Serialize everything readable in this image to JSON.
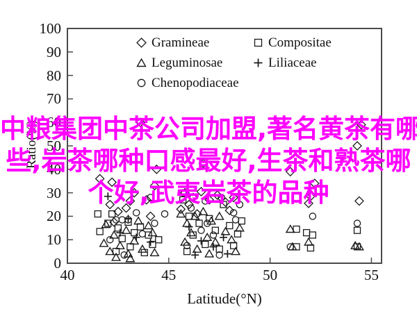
{
  "overlay": {
    "color": "#ff00ff",
    "lines": [
      "中粮集团中茶公司加盟,著名黄茶有哪",
      "些,岩茶哪种口感最好,生茶和熟茶哪",
      "个好,武夷岩茶的品种"
    ]
  },
  "chart_data": {
    "type": "scatter",
    "title": "",
    "xlabel": "Latitude(°N)",
    "ylabel": "Ratio(%)",
    "xlim": [
      40,
      55.5
    ],
    "ylim": [
      0,
      100
    ],
    "x_ticks": [
      40,
      45,
      50,
      55
    ],
    "y_ticks": [
      0,
      10,
      20,
      30,
      40,
      50,
      60,
      70,
      80,
      90,
      100
    ],
    "grid": false,
    "legend_position": "top-inside, two columns",
    "axis_color": "#4a4a4a",
    "marker_color": "#1a1a1a",
    "series": [
      {
        "name": "Gramineae",
        "symbol": "diamond",
        "points": [
          [
            43.6,
            60
          ],
          [
            44.4,
            40
          ],
          [
            41.6,
            36
          ],
          [
            42.2,
            34.5
          ],
          [
            42.1,
            25
          ],
          [
            43.1,
            26.5
          ],
          [
            42.9,
            23.5
          ],
          [
            43.9,
            27
          ],
          [
            42.5,
            22
          ],
          [
            43.3,
            30
          ],
          [
            44.3,
            33
          ],
          [
            42.3,
            17.5
          ],
          [
            44.1,
            20
          ],
          [
            46.7,
            42.5
          ],
          [
            45.8,
            30
          ],
          [
            46.2,
            28
          ],
          [
            46.6,
            30.5
          ],
          [
            47.0,
            27
          ],
          [
            47.4,
            29
          ],
          [
            46.0,
            25
          ],
          [
            47.8,
            26
          ],
          [
            45.6,
            23
          ],
          [
            48.2,
            28
          ],
          [
            46.4,
            21
          ],
          [
            48.0,
            22.5
          ],
          [
            51.0,
            39
          ],
          [
            52.2,
            34
          ],
          [
            52.0,
            28.5
          ],
          [
            51.9,
            25.5
          ],
          [
            54.5,
            59
          ],
          [
            54.3,
            50
          ],
          [
            54.4,
            26.5
          ]
        ]
      },
      {
        "name": "Compositae",
        "symbol": "square",
        "points": [
          [
            41.5,
            21
          ],
          [
            42.2,
            21
          ],
          [
            41.6,
            13.5
          ],
          [
            42.0,
            17
          ],
          [
            42.5,
            15
          ],
          [
            43.0,
            17.5
          ],
          [
            43.3,
            13
          ],
          [
            42.7,
            10.5
          ],
          [
            43.6,
            15.5
          ],
          [
            44.0,
            12
          ],
          [
            43.1,
            7
          ],
          [
            44.2,
            8
          ],
          [
            42.4,
            5
          ],
          [
            43.8,
            4.5
          ],
          [
            44.5,
            10
          ],
          [
            45.7,
            27
          ],
          [
            47.7,
            25
          ],
          [
            46.0,
            20
          ],
          [
            46.5,
            17
          ],
          [
            47.0,
            19
          ],
          [
            47.3,
            14
          ],
          [
            46.2,
            12
          ],
          [
            48.0,
            16
          ],
          [
            48.4,
            12.5
          ],
          [
            46.8,
            8
          ],
          [
            47.5,
            6
          ],
          [
            48.2,
            7.5
          ],
          [
            45.9,
            5
          ],
          [
            48.6,
            18
          ],
          [
            51.3,
            14.5
          ],
          [
            51.8,
            13
          ],
          [
            52.1,
            12
          ],
          [
            51.3,
            7
          ],
          [
            52.0,
            6.5
          ],
          [
            54.3,
            14
          ],
          [
            54.3,
            7
          ]
        ]
      },
      {
        "name": "Leguminosae",
        "symbol": "triangle",
        "points": [
          [
            41.9,
            16.5
          ],
          [
            42.3,
            12
          ],
          [
            41.8,
            8.5
          ],
          [
            42.1,
            5
          ],
          [
            42.6,
            7.5
          ],
          [
            43.0,
            4
          ],
          [
            43.3,
            9.5
          ],
          [
            43.7,
            6
          ],
          [
            44.0,
            16
          ],
          [
            44.2,
            13
          ],
          [
            42.9,
            14
          ],
          [
            43.5,
            18
          ],
          [
            44.3,
            4.5
          ],
          [
            42.4,
            2.5
          ],
          [
            43.1,
            2
          ],
          [
            45.6,
            21
          ],
          [
            45.9,
            17
          ],
          [
            46.3,
            20
          ],
          [
            46.7,
            22
          ],
          [
            47.1,
            18
          ],
          [
            47.5,
            20
          ],
          [
            46.1,
            13
          ],
          [
            46.9,
            11
          ],
          [
            47.3,
            9
          ],
          [
            47.8,
            13.5
          ],
          [
            48.1,
            10
          ],
          [
            46.4,
            6
          ],
          [
            47.0,
            4
          ],
          [
            48.3,
            5
          ],
          [
            45.8,
            9
          ],
          [
            48.5,
            15
          ],
          [
            51.0,
            14.5
          ],
          [
            51.1,
            7
          ],
          [
            51.9,
            9
          ],
          [
            54.2,
            7.5
          ],
          [
            54.4,
            7
          ]
        ]
      },
      {
        "name": "Liliaceae",
        "symbol": "plus",
        "points": [
          [
            42.0,
            28.5
          ],
          [
            42.6,
            13
          ],
          [
            43.4,
            11
          ],
          [
            44.1,
            9
          ],
          [
            43.0,
            19
          ],
          [
            46.0,
            15.5
          ],
          [
            46.6,
            9.5
          ],
          [
            47.2,
            7
          ],
          [
            46.3,
            3.5
          ],
          [
            47.7,
            11
          ],
          [
            47.9,
            4
          ]
        ]
      },
      {
        "name": "Chenopodiaceae",
        "symbol": "circle",
        "points": [
          [
            42.4,
            18.5
          ],
          [
            42.7,
            18.5
          ],
          [
            43.0,
            18.5
          ],
          [
            44.1,
            28
          ],
          [
            43.4,
            21.5
          ],
          [
            42.1,
            10
          ],
          [
            43.7,
            12.5
          ],
          [
            44.8,
            21
          ],
          [
            42.8,
            3.5
          ],
          [
            44.3,
            17
          ],
          [
            45.7,
            30
          ],
          [
            46.8,
            26.5
          ],
          [
            46.1,
            23.5
          ],
          [
            47.6,
            28
          ],
          [
            48.2,
            21.5
          ],
          [
            48.5,
            25
          ],
          [
            48.3,
            18.5
          ],
          [
            46.6,
            14
          ],
          [
            47.2,
            12
          ],
          [
            45.9,
            7.5
          ],
          [
            47.5,
            3.5
          ],
          [
            46.9,
            17
          ],
          [
            51.0,
            7
          ],
          [
            52.1,
            20
          ],
          [
            54.3,
            17
          ]
        ]
      }
    ]
  }
}
